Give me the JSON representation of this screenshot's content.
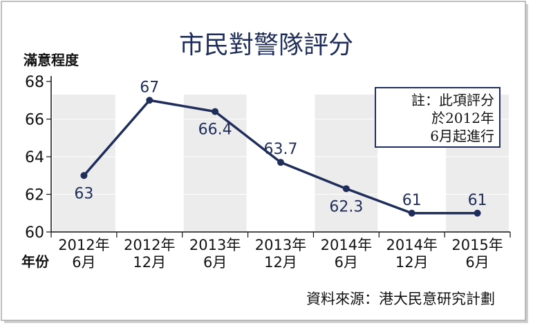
{
  "chart_data": {
    "type": "line",
    "title": "市民對警隊評分",
    "ylabel": "滿意程度",
    "xlabel": "年份",
    "categories": [
      {
        "line1": "2012年",
        "line2": "6月"
      },
      {
        "line1": "2012年",
        "line2": "12月"
      },
      {
        "line1": "2013年",
        "line2": "6月"
      },
      {
        "line1": "2013年",
        "line2": "12月"
      },
      {
        "line1": "2014年",
        "line2": "6月"
      },
      {
        "line1": "2014年",
        "line2": "12月"
      },
      {
        "line1": "2015年",
        "line2": "6月"
      }
    ],
    "values": [
      63,
      67,
      66.4,
      63.7,
      62.3,
      61,
      61
    ],
    "value_labels": [
      "63",
      "67",
      "66.4",
      "63.7",
      "62.3",
      "61",
      "61"
    ],
    "ylim": [
      60,
      68
    ],
    "yticks": [
      "60",
      "62",
      "64",
      "66",
      "68"
    ],
    "note_lines": [
      "註：此項評分",
      "於2012年",
      "6月起進行"
    ],
    "source": "資料來源：港大民意研究計劃",
    "colors": {
      "line": "#1f2d5a",
      "title": "#1f2d5a",
      "band": "#ececec",
      "border": "#a9a9a9",
      "shadow": "#c8c8c8"
    }
  }
}
